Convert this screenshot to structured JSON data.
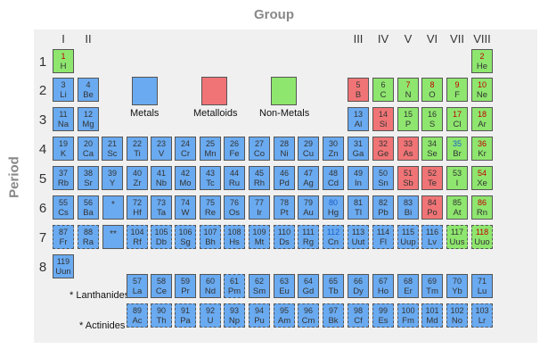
{
  "titles": {
    "group": "Group",
    "period": "Period"
  },
  "groups": [
    "I",
    "II",
    "III",
    "IV",
    "V",
    "VI",
    "VII",
    "VIII"
  ],
  "periods": [
    "1",
    "2",
    "3",
    "4",
    "5",
    "6",
    "7",
    "8"
  ],
  "legend": {
    "metals": "Metals",
    "metalloids": "Metalloids",
    "nonmetals": "Non-Metals"
  },
  "series_labels": {
    "lanthanides": "* Lanthanides",
    "actinides": "* Actinides"
  },
  "placeholders": {
    "lanthanide_marker": "*",
    "actinide_marker": "**"
  },
  "colors": {
    "metal": "#6aaaf0",
    "metalloid": "#f07476",
    "nonmetal": "#8ee66e"
  },
  "elements": [
    {
      "n": "1",
      "s": "H",
      "t": "nonmetal",
      "c": "red"
    },
    {
      "n": "2",
      "s": "He",
      "t": "nonmetal",
      "c": "red"
    },
    {
      "n": "3",
      "s": "Li",
      "t": "metal"
    },
    {
      "n": "4",
      "s": "Be",
      "t": "metal"
    },
    {
      "n": "5",
      "s": "B",
      "t": "metalloid"
    },
    {
      "n": "6",
      "s": "C",
      "t": "nonmetal"
    },
    {
      "n": "7",
      "s": "N",
      "t": "nonmetal",
      "c": "red"
    },
    {
      "n": "8",
      "s": "O",
      "t": "nonmetal",
      "c": "red"
    },
    {
      "n": "9",
      "s": "F",
      "t": "nonmetal",
      "c": "red"
    },
    {
      "n": "10",
      "s": "Ne",
      "t": "nonmetal",
      "c": "red"
    },
    {
      "n": "11",
      "s": "Na",
      "t": "metal"
    },
    {
      "n": "12",
      "s": "Mg",
      "t": "metal"
    },
    {
      "n": "13",
      "s": "Al",
      "t": "metal"
    },
    {
      "n": "14",
      "s": "Si",
      "t": "metalloid"
    },
    {
      "n": "15",
      "s": "P",
      "t": "nonmetal"
    },
    {
      "n": "16",
      "s": "S",
      "t": "nonmetal"
    },
    {
      "n": "17",
      "s": "Cl",
      "t": "nonmetal",
      "c": "red"
    },
    {
      "n": "18",
      "s": "Ar",
      "t": "nonmetal",
      "c": "red"
    },
    {
      "n": "19",
      "s": "K",
      "t": "metal"
    },
    {
      "n": "20",
      "s": "Ca",
      "t": "metal"
    },
    {
      "n": "21",
      "s": "Sc",
      "t": "metal"
    },
    {
      "n": "22",
      "s": "Ti",
      "t": "metal"
    },
    {
      "n": "23",
      "s": "V",
      "t": "metal"
    },
    {
      "n": "24",
      "s": "Cr",
      "t": "metal"
    },
    {
      "n": "25",
      "s": "Mn",
      "t": "metal"
    },
    {
      "n": "26",
      "s": "Fe",
      "t": "metal"
    },
    {
      "n": "27",
      "s": "Co",
      "t": "metal"
    },
    {
      "n": "28",
      "s": "Ni",
      "t": "metal"
    },
    {
      "n": "29",
      "s": "Cu",
      "t": "metal"
    },
    {
      "n": "30",
      "s": "Zn",
      "t": "metal"
    },
    {
      "n": "31",
      "s": "Ga",
      "t": "metal"
    },
    {
      "n": "32",
      "s": "Ge",
      "t": "metalloid"
    },
    {
      "n": "33",
      "s": "As",
      "t": "metalloid"
    },
    {
      "n": "34",
      "s": "Se",
      "t": "nonmetal"
    },
    {
      "n": "35",
      "s": "Br",
      "t": "nonmetal",
      "c": "blue"
    },
    {
      "n": "36",
      "s": "Kr",
      "t": "nonmetal",
      "c": "red"
    },
    {
      "n": "37",
      "s": "Rb",
      "t": "metal"
    },
    {
      "n": "38",
      "s": "Sr",
      "t": "metal"
    },
    {
      "n": "39",
      "s": "Y",
      "t": "metal"
    },
    {
      "n": "40",
      "s": "Zr",
      "t": "metal"
    },
    {
      "n": "41",
      "s": "Nb",
      "t": "metal"
    },
    {
      "n": "42",
      "s": "Mo",
      "t": "metal"
    },
    {
      "n": "43",
      "s": "Tc",
      "t": "metal"
    },
    {
      "n": "44",
      "s": "Ru",
      "t": "metal"
    },
    {
      "n": "45",
      "s": "Rh",
      "t": "metal"
    },
    {
      "n": "46",
      "s": "Pd",
      "t": "metal"
    },
    {
      "n": "47",
      "s": "Ag",
      "t": "metal"
    },
    {
      "n": "48",
      "s": "Cd",
      "t": "metal"
    },
    {
      "n": "49",
      "s": "In",
      "t": "metal"
    },
    {
      "n": "50",
      "s": "Sn",
      "t": "metal"
    },
    {
      "n": "51",
      "s": "Sb",
      "t": "metalloid"
    },
    {
      "n": "52",
      "s": "Te",
      "t": "metalloid"
    },
    {
      "n": "53",
      "s": "I",
      "t": "nonmetal"
    },
    {
      "n": "54",
      "s": "Xe",
      "t": "nonmetal",
      "c": "red"
    },
    {
      "n": "55",
      "s": "Cs",
      "t": "metal"
    },
    {
      "n": "56",
      "s": "Ba",
      "t": "metal"
    },
    {
      "n": "72",
      "s": "Hf",
      "t": "metal"
    },
    {
      "n": "73",
      "s": "Ta",
      "t": "metal"
    },
    {
      "n": "74",
      "s": "W",
      "t": "metal"
    },
    {
      "n": "75",
      "s": "Re",
      "t": "metal"
    },
    {
      "n": "76",
      "s": "Os",
      "t": "metal"
    },
    {
      "n": "77",
      "s": "Ir",
      "t": "metal"
    },
    {
      "n": "78",
      "s": "Pt",
      "t": "metal"
    },
    {
      "n": "79",
      "s": "Au",
      "t": "metal"
    },
    {
      "n": "80",
      "s": "Hg",
      "t": "metal",
      "c": "blue"
    },
    {
      "n": "81",
      "s": "Tl",
      "t": "metal"
    },
    {
      "n": "82",
      "s": "Pb",
      "t": "metal"
    },
    {
      "n": "83",
      "s": "Bi",
      "t": "metal"
    },
    {
      "n": "84",
      "s": "Po",
      "t": "metalloid"
    },
    {
      "n": "85",
      "s": "At",
      "t": "nonmetal"
    },
    {
      "n": "86",
      "s": "Rn",
      "t": "nonmetal",
      "c": "red"
    },
    {
      "n": "87",
      "s": "Fr",
      "t": "metal",
      "d": true
    },
    {
      "n": "88",
      "s": "Ra",
      "t": "metal",
      "d": true
    },
    {
      "n": "104",
      "s": "Rf",
      "t": "metal",
      "d": true
    },
    {
      "n": "105",
      "s": "Db",
      "t": "metal",
      "d": true
    },
    {
      "n": "106",
      "s": "Sg",
      "t": "metal",
      "d": true
    },
    {
      "n": "107",
      "s": "Bh",
      "t": "metal",
      "d": true
    },
    {
      "n": "108",
      "s": "Hs",
      "t": "metal",
      "d": true
    },
    {
      "n": "109",
      "s": "Mt",
      "t": "metal",
      "d": true
    },
    {
      "n": "110",
      "s": "Ds",
      "t": "metal",
      "d": true
    },
    {
      "n": "111",
      "s": "Rg",
      "t": "metal",
      "d": true
    },
    {
      "n": "112",
      "s": "Cn",
      "t": "metal",
      "d": true,
      "c": "blue"
    },
    {
      "n": "113",
      "s": "Uut",
      "t": "metal",
      "d": true
    },
    {
      "n": "114",
      "s": "Fl",
      "t": "metal",
      "d": true
    },
    {
      "n": "115",
      "s": "Uup",
      "t": "metal",
      "d": true
    },
    {
      "n": "116",
      "s": "Lv",
      "t": "metal",
      "d": true
    },
    {
      "n": "117",
      "s": "Uus",
      "t": "nonmetal",
      "d": true
    },
    {
      "n": "118",
      "s": "Uuo",
      "t": "nonmetal",
      "d": true,
      "c": "red"
    },
    {
      "n": "119",
      "s": "Uun",
      "t": "metal"
    },
    {
      "n": "57",
      "s": "La",
      "t": "metal"
    },
    {
      "n": "58",
      "s": "Ce",
      "t": "metal"
    },
    {
      "n": "59",
      "s": "Pr",
      "t": "metal"
    },
    {
      "n": "60",
      "s": "Nd",
      "t": "metal"
    },
    {
      "n": "61",
      "s": "Pm",
      "t": "metal",
      "d": true
    },
    {
      "n": "62",
      "s": "Sm",
      "t": "metal"
    },
    {
      "n": "63",
      "s": "Eu",
      "t": "metal"
    },
    {
      "n": "64",
      "s": "Gd",
      "t": "metal"
    },
    {
      "n": "65",
      "s": "Tb",
      "t": "metal"
    },
    {
      "n": "66",
      "s": "Dy",
      "t": "metal"
    },
    {
      "n": "67",
      "s": "Ho",
      "t": "metal"
    },
    {
      "n": "68",
      "s": "Er",
      "t": "metal"
    },
    {
      "n": "69",
      "s": "Tm",
      "t": "metal"
    },
    {
      "n": "70",
      "s": "Yb",
      "t": "metal"
    },
    {
      "n": "71",
      "s": "Lu",
      "t": "metal"
    },
    {
      "n": "89",
      "s": "Ac",
      "t": "metal",
      "d": true
    },
    {
      "n": "90",
      "s": "Th",
      "t": "metal",
      "d": true
    },
    {
      "n": "91",
      "s": "Pa",
      "t": "metal",
      "d": true
    },
    {
      "n": "92",
      "s": "U",
      "t": "metal",
      "d": true
    },
    {
      "n": "93",
      "s": "Np",
      "t": "metal",
      "d": true
    },
    {
      "n": "94",
      "s": "Pu",
      "t": "metal",
      "d": true
    },
    {
      "n": "95",
      "s": "Am",
      "t": "metal",
      "d": true
    },
    {
      "n": "96",
      "s": "Cm",
      "t": "metal",
      "d": true
    },
    {
      "n": "97",
      "s": "Bk",
      "t": "metal",
      "d": true
    },
    {
      "n": "98",
      "s": "Cf",
      "t": "metal",
      "d": true
    },
    {
      "n": "99",
      "s": "Es",
      "t": "metal",
      "d": true
    },
    {
      "n": "100",
      "s": "Fm",
      "t": "metal",
      "d": true
    },
    {
      "n": "101",
      "s": "Md",
      "t": "metal",
      "d": true
    },
    {
      "n": "102",
      "s": "No",
      "t": "metal",
      "d": true
    },
    {
      "n": "103",
      "s": "Lr",
      "t": "metal",
      "d": true
    }
  ]
}
